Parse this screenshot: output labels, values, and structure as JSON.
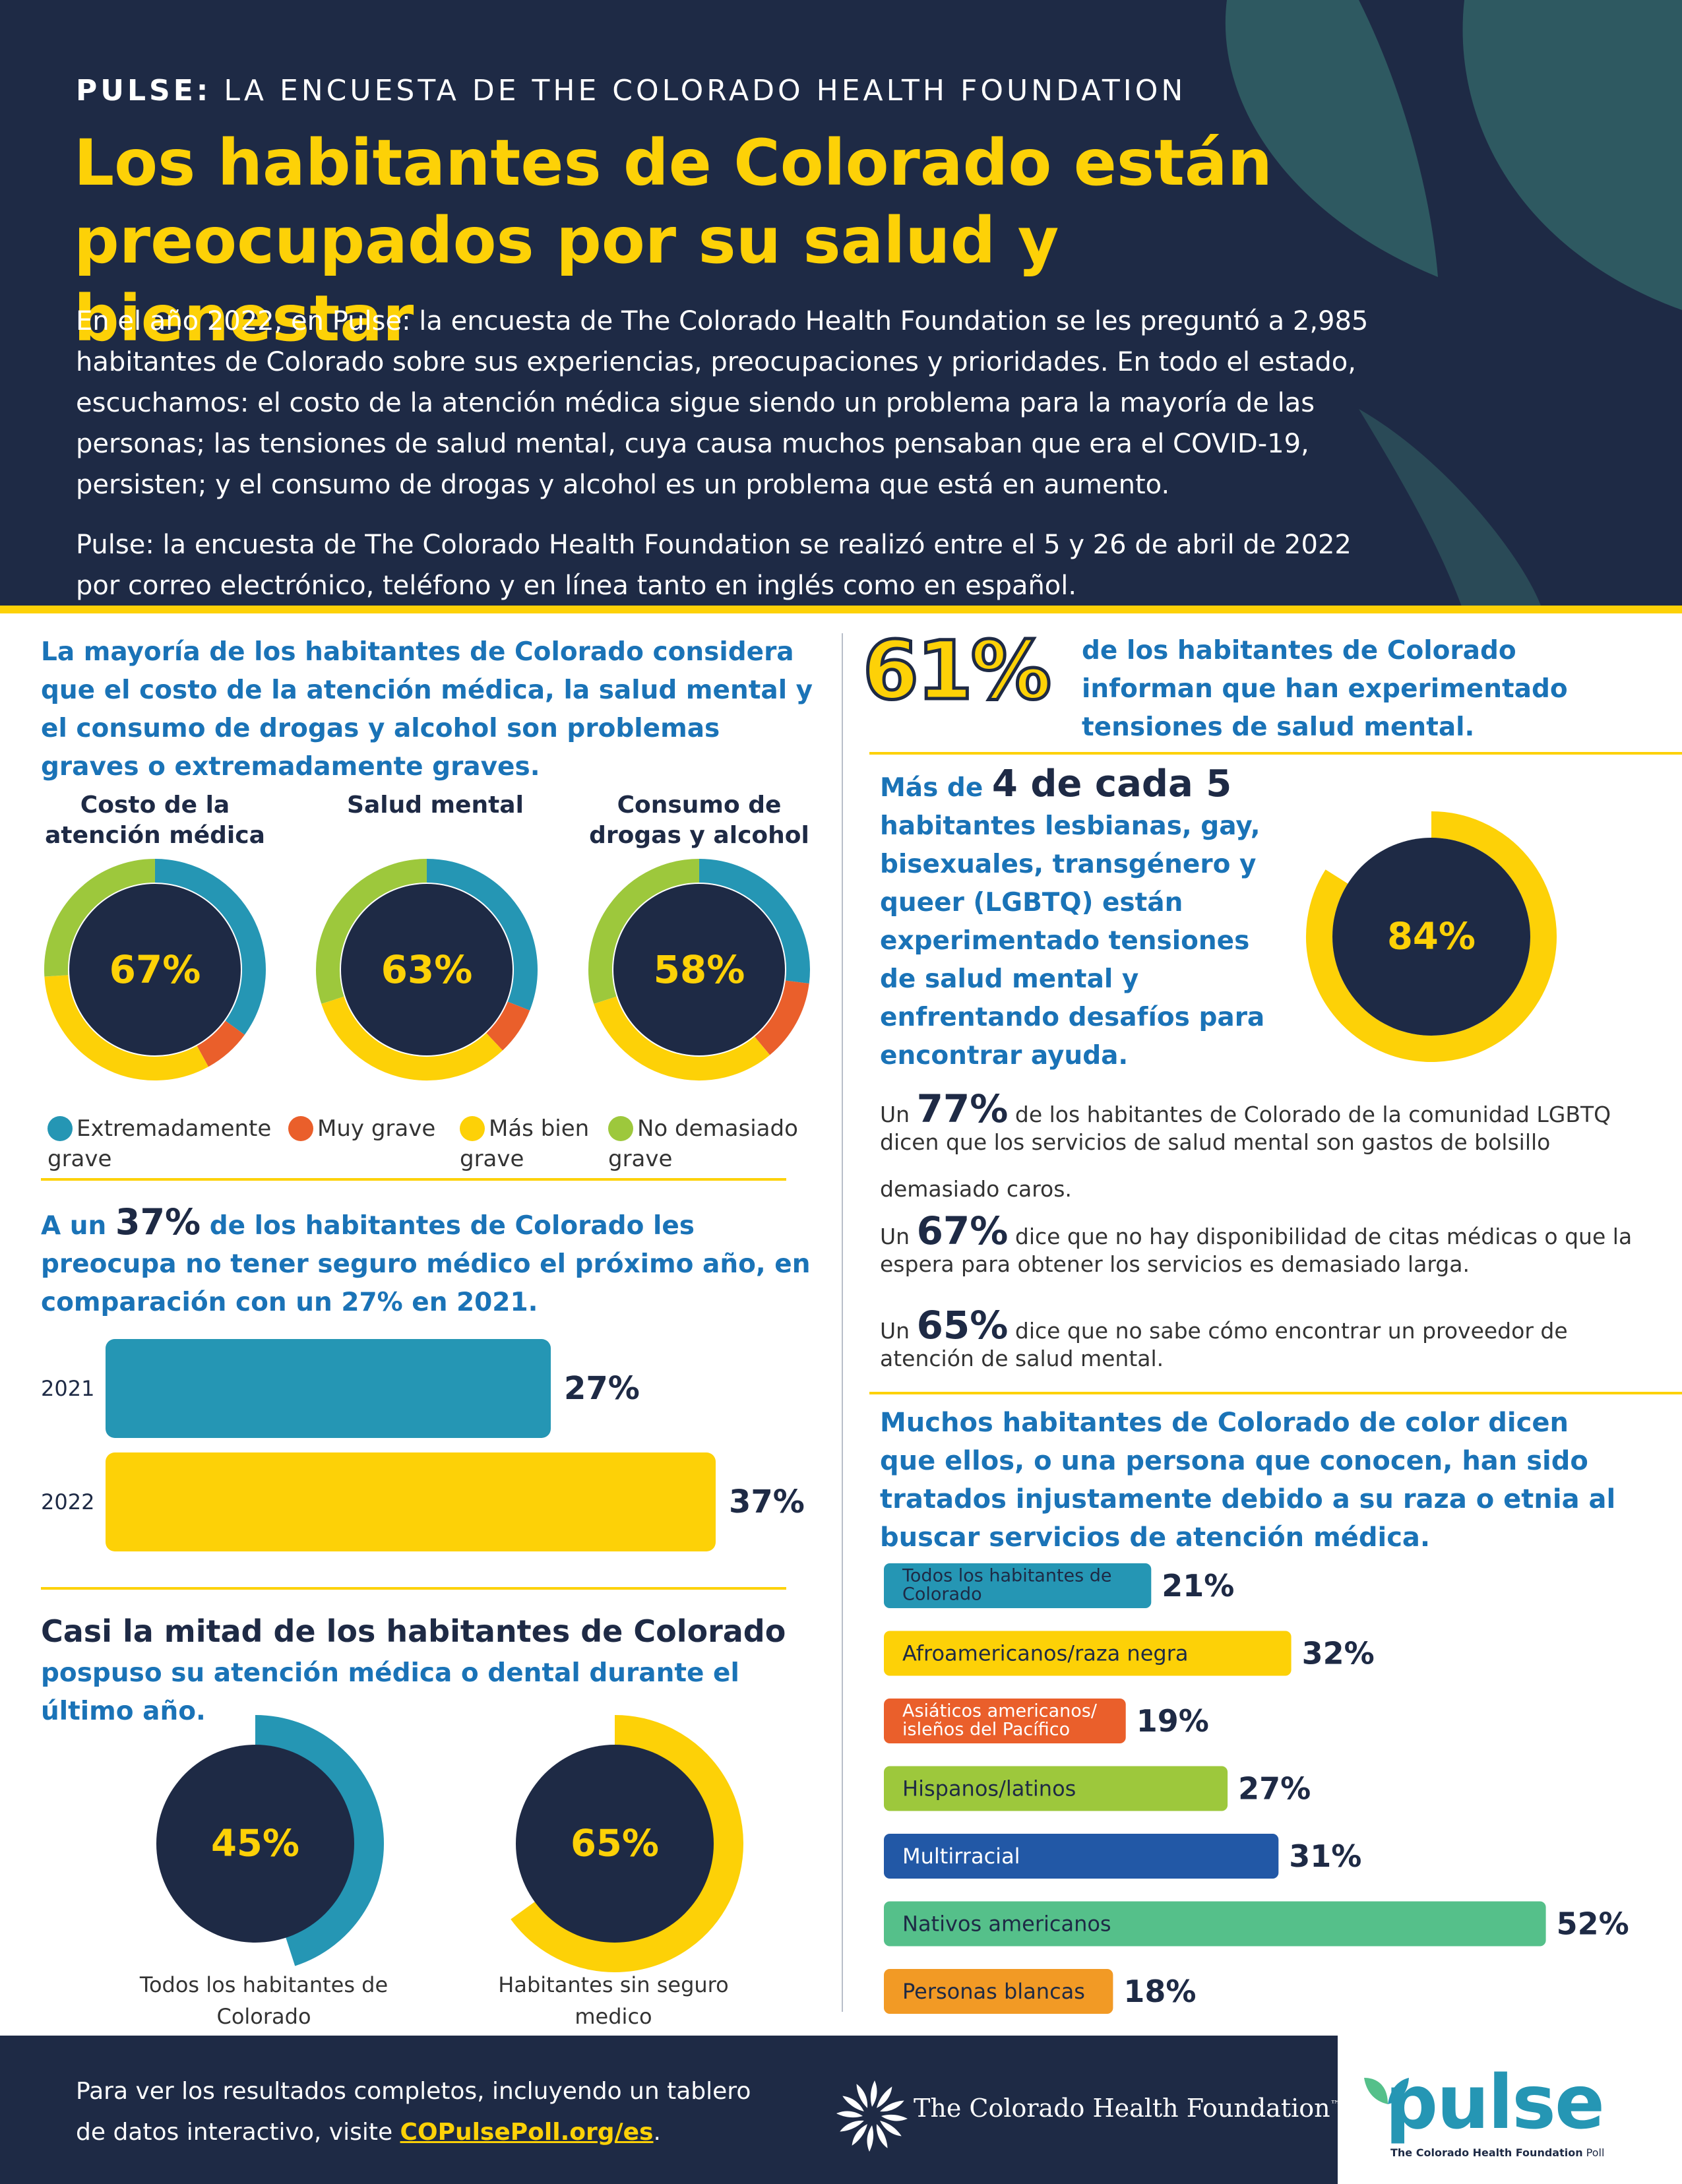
{
  "header": {
    "kicker_bold": "PULSE:",
    "kicker_rest": " LA ENCUESTA DE THE COLORADO HEALTH FOUNDATION",
    "title": "Los habitantes de Colorado están preocupados por su salud y bienestar",
    "intro_1": "En el año 2022, en Pulse: la encuesta de The Colorado Health Foundation se les preguntó a 2,985 habitantes de Colorado sobre sus experiencias, preocupaciones y prioridades. En todo el estado, escuchamos: el costo de la atención médica sigue siendo un problema para la mayoría de las personas; las tensiones de salud mental, cuya causa muchos pensaban que era el COVID-19, persisten; y el consumo de drogas y alcohol es un problema que está en aumento.",
    "intro_2": "Pulse: la encuesta de The Colorado Health Foundation se realizó entre el 5 y 26 de abril de 2022 por correo electrónico, teléfono y en línea tanto en inglés como en español."
  },
  "colors": {
    "navy": "#1e2a45",
    "yellow": "#fdd107",
    "teal": "#2596b4",
    "orange": "#ea5f2b",
    "green": "#9dc83c",
    "blue": "#2258a6",
    "mint": "#55c08a",
    "amber": "#f29a25",
    "heading_blue": "#1a73b7"
  },
  "left": {
    "donuts_heading": "La mayoría de los habitantes de Colorado considera que el costo de la atención médica, la salud mental y el consumo de drogas y alcohol son problemas graves o extremadamente graves.",
    "donut_titles": [
      "Costo de la atención médica",
      "Salud mental",
      "Consumo de drogas y alcohol"
    ],
    "legend": [
      "Extremadamente grave",
      "Muy grave",
      "Más bien grave",
      "No demasiado grave"
    ],
    "insurance_heading_pre": "A un ",
    "insurance_heading_num": "37%",
    "insurance_heading_post": " de los habitantes de Colorado les preocupa no tener seguro médico el próximo año, en comparación con un 27% en 2021.",
    "postpone_heading_dark": "Casi la mitad de los habitantes de Colorado",
    "postpone_heading_blue": "pospuso su atención médica o dental durante el último año.",
    "postpone_labels": [
      "Todos los habitantes de Colorado",
      "Habitantes sin seguro medico"
    ]
  },
  "right": {
    "mh_pct": "61%",
    "mh_text": "de los habitantes de Colorado informan que han experimentado tensiones de salud mental.",
    "lgbtq_pre": "Más de ",
    "lgbtq_num": "4 de cada 5",
    "lgbtq_post": "habitantes lesbianas, gay, bisexuales, transgénero y queer (LGBTQ) están experimentado tensiones de salud mental y enfrentando desafíos para encontrar ayuda.",
    "stat1_pre": "Un ",
    "stat1_num": "77%",
    "stat1_text_a": " de los habitantes de Colorado de la comunidad LGBTQ dicen que los servicios de salud mental son gastos de bolsillo",
    "stat1_text_b": "demasiado caros.",
    "stat2_pre": "Un ",
    "stat2_num": "67%",
    "stat2_text": " dice que no hay disponibilidad de citas médicas o que la espera para obtener los servicios es demasiado larga.",
    "stat3_pre": "Un ",
    "stat3_num": "65%",
    "stat3_text": " dice que no sabe cómo encontrar un proveedor de atención de salud mental.",
    "race_heading": "Muchos habitantes de Colorado de color dicen que ellos, o una persona que conocen, han sido tratados injustamente debido a su raza o etnia al buscar servicios de atención médica."
  },
  "footer": {
    "text_1": "Para ver los resultados completos, incluyendo un tablero",
    "text_2_pre": "de datos interactivo, visite ",
    "link": "COPulsePoll.org/es",
    "text_2_post": ".",
    "foundation": "The Colorado Health Foundation",
    "tm": "™",
    "pulse_logo": "pulse",
    "pulse_sub_bold": "The Colorado Health Foundation",
    "pulse_sub_rest": " Poll",
    "icons": [
      "sunburst-logo-icon",
      "leaf-logo-icon"
    ]
  },
  "chart_data": [
    {
      "type": "pie",
      "title": "Costo de la atención médica",
      "center_label": "67%",
      "categories": [
        "Extremadamente grave",
        "Muy grave",
        "Más bien grave",
        "No demasiado grave"
      ],
      "values": [
        35,
        7,
        32,
        26
      ]
    },
    {
      "type": "pie",
      "title": "Salud mental",
      "center_label": "63%",
      "categories": [
        "Extremadamente grave",
        "Muy grave",
        "Más bien grave",
        "No demasiado grave"
      ],
      "values": [
        31,
        7,
        32,
        30
      ]
    },
    {
      "type": "pie",
      "title": "Consumo de drogas y alcohol",
      "center_label": "58%",
      "categories": [
        "Extremadamente grave",
        "Muy grave",
        "Más bien grave",
        "No demasiado grave"
      ],
      "values": [
        27,
        12,
        31,
        30
      ]
    },
    {
      "type": "bar",
      "categories": [
        "2021",
        "2022"
      ],
      "values": [
        27,
        37
      ],
      "value_labels": [
        "27%",
        "37%"
      ]
    },
    {
      "type": "pie",
      "title": "Todos los habitantes de Colorado",
      "center_label": "45%",
      "values": [
        45
      ]
    },
    {
      "type": "pie",
      "title": "Habitantes sin seguro medico",
      "center_label": "65%",
      "values": [
        65
      ]
    },
    {
      "type": "pie",
      "center_label": "84%",
      "values": [
        84
      ]
    },
    {
      "type": "bar",
      "categories": [
        "Todos los habitantes de Colorado",
        "Afroamericanos/raza negra",
        "Asiáticos americanos/ isleños del Pacífico",
        "Hispanos/latinos",
        "Multirracial",
        "Nativos americanos",
        "Personas blancas"
      ],
      "values": [
        21,
        32,
        19,
        27,
        31,
        52,
        18
      ],
      "value_labels": [
        "21%",
        "32%",
        "19%",
        "27%",
        "31%",
        "52%",
        "18%"
      ]
    }
  ]
}
